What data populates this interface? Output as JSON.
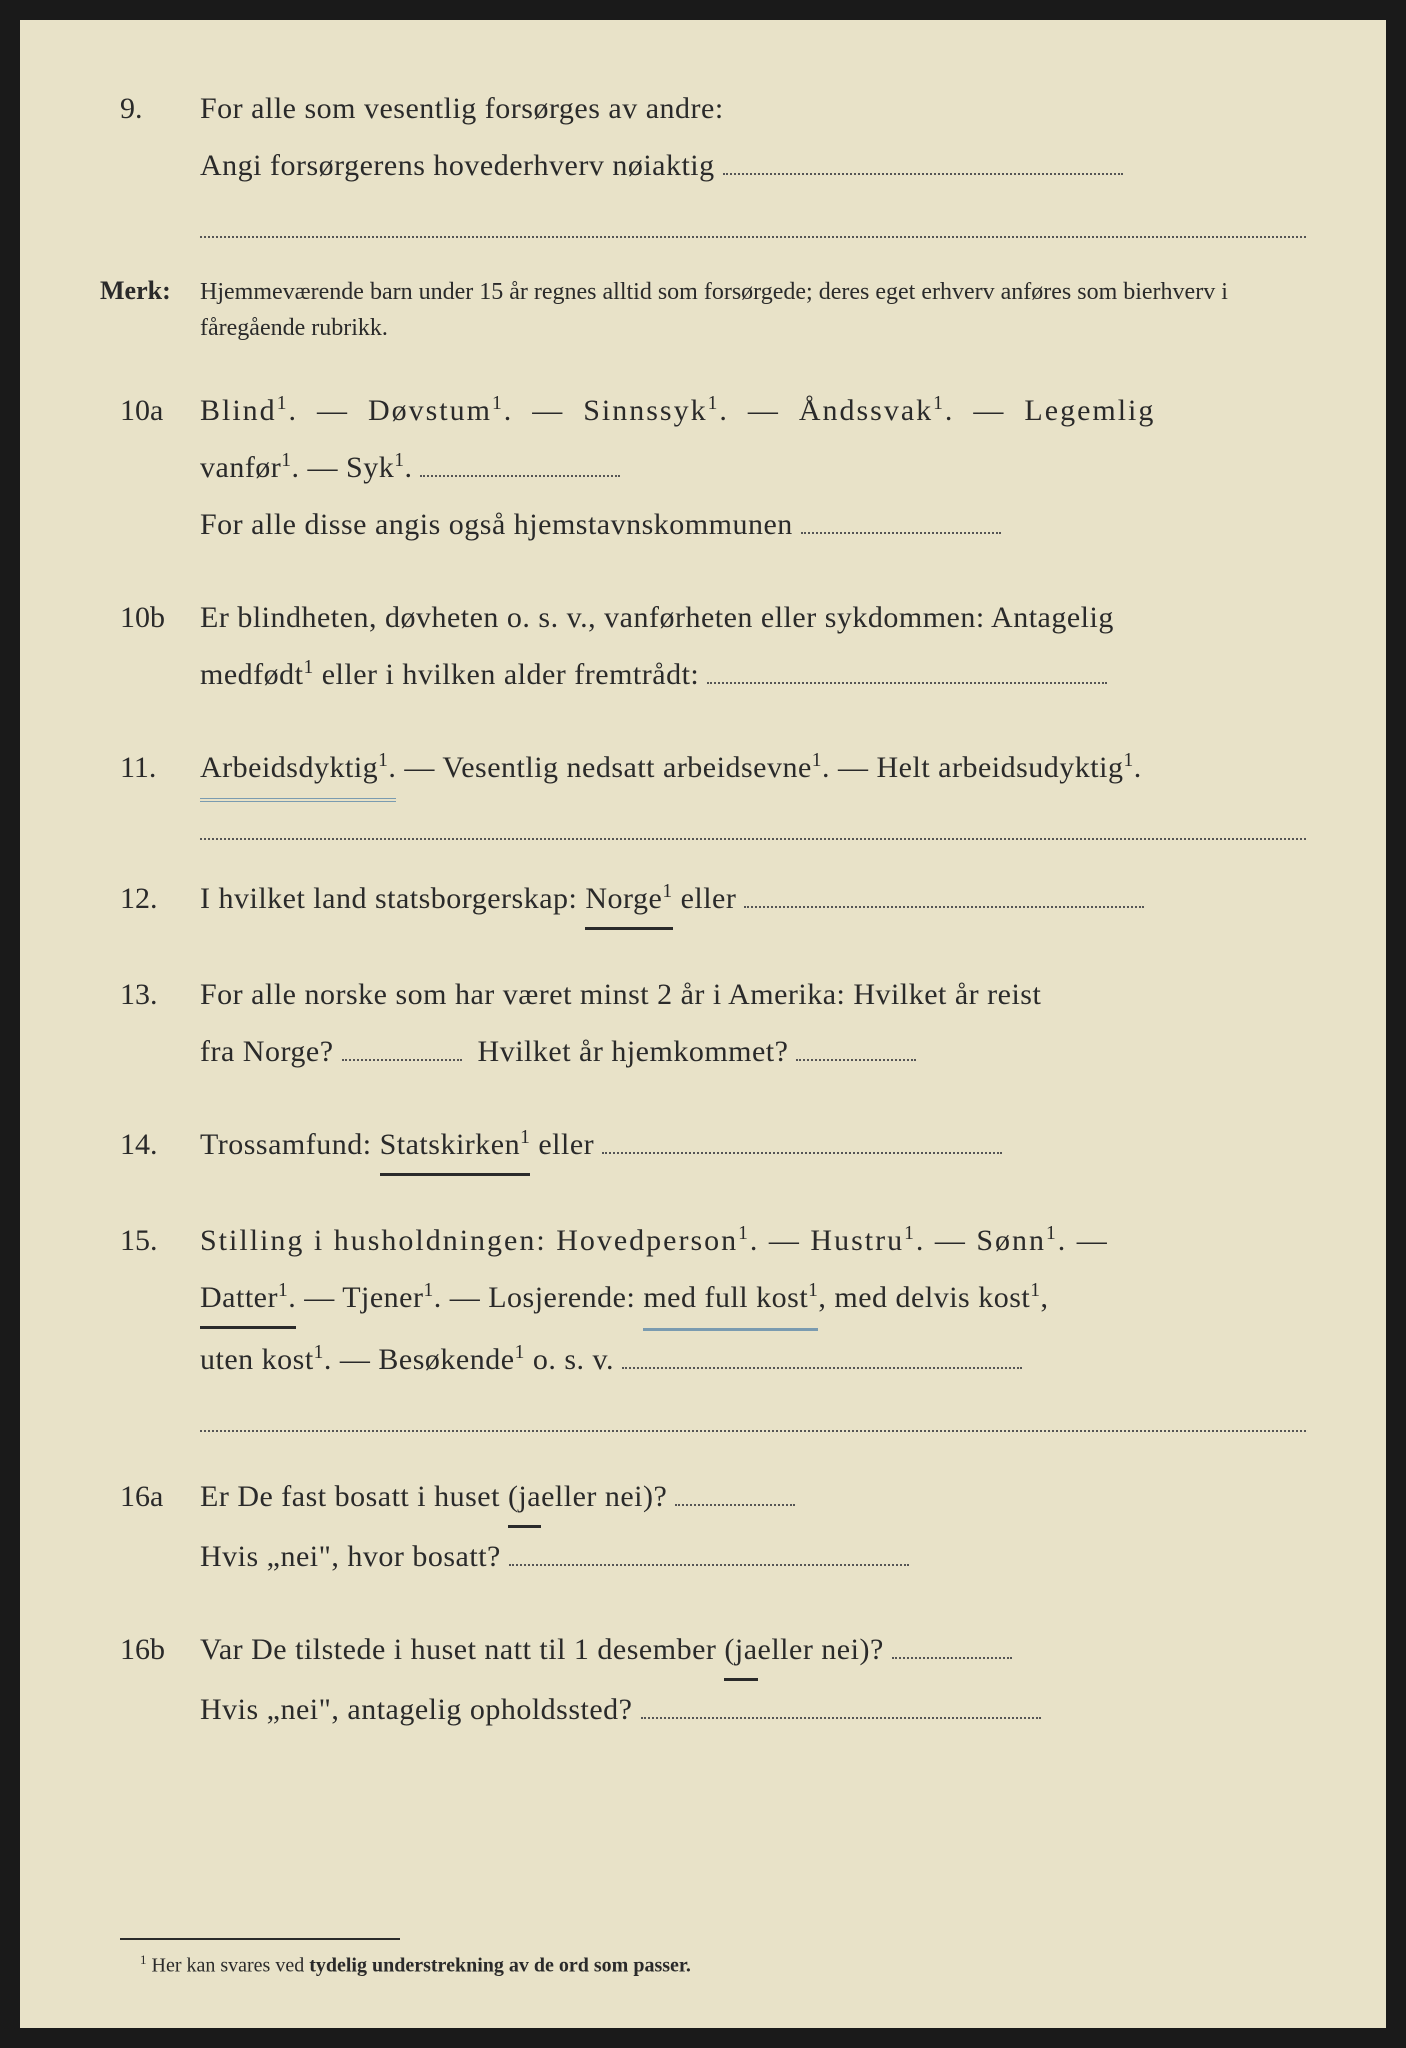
{
  "q9": {
    "num": "9.",
    "line1": "For alle som vesentlig forsørges av andre:",
    "line2": "Angi forsørgerens hovederhverv nøiaktig"
  },
  "merk": {
    "label": "Merk:",
    "text": "Hjemmeværende barn under 15 år regnes alltid som forsørgede; deres eget erhverv anføres som bierhverv i fåregående rubrikk."
  },
  "q10a": {
    "num": "10a",
    "opt1": "Blind",
    "opt2": "Døvstum",
    "opt3": "Sinnssyk",
    "opt4": "Åndssvak",
    "opt5": "Legemlig",
    "opt6": "vanfør",
    "opt7": "Syk",
    "line3": "For alle disse angis også hjemstavnskommunen"
  },
  "q10b": {
    "num": "10b",
    "text1": "Er blindheten, døvheten o. s. v., vanførheten eller sykdommen: Antagelig",
    "text2": "medfødt",
    "text3": " eller i hvilken alder fremtrådt:"
  },
  "q11": {
    "num": "11.",
    "opt1": "Arbeidsdyktig",
    "opt2": "Vesentlig nedsatt arbeidsevne",
    "opt3": "Helt arbeidsudyktig"
  },
  "q12": {
    "num": "12.",
    "text1": "I hvilket land statsborgerskap: ",
    "norge": "Norge",
    "text2": " eller"
  },
  "q13": {
    "num": "13.",
    "text1": "For alle norske som har været minst 2 år i Amerika: Hvilket år reist",
    "text2": "fra Norge?",
    "text3": "Hvilket år hjemkommet?"
  },
  "q14": {
    "num": "14.",
    "text1": "Trossamfund: ",
    "stats": "Statskirken",
    "text2": " eller"
  },
  "q15": {
    "num": "15.",
    "text1": "Stilling i husholdningen: Hovedperson",
    "hustru": "Hustru",
    "sonn": "Sønn",
    "datter": "Datter",
    "tjener": "Tjener",
    "losj": "Losjerende: ",
    "medkost": "med full kost",
    "delvis": ", med delvis kost",
    "uten": "uten kost",
    "besok": "Besøkende",
    "osv": " o. s. v."
  },
  "q16a": {
    "num": "16a",
    "text1": "Er De fast bosatt i huset ",
    "ja": "(ja ",
    "eller": "eller nei)?",
    "text2": "Hvis „nei\", hvor bosatt?"
  },
  "q16b": {
    "num": "16b",
    "text1": "Var De tilstede i huset natt til 1 desember ",
    "ja": "(ja ",
    "eller": "eller nei)?",
    "text2": "Hvis „nei\", antagelig opholdssted?"
  },
  "footnote": {
    "num": "1",
    "text1": "Her kan svares ved ",
    "bold": "tydelig understrekning av de ord som passer."
  }
}
